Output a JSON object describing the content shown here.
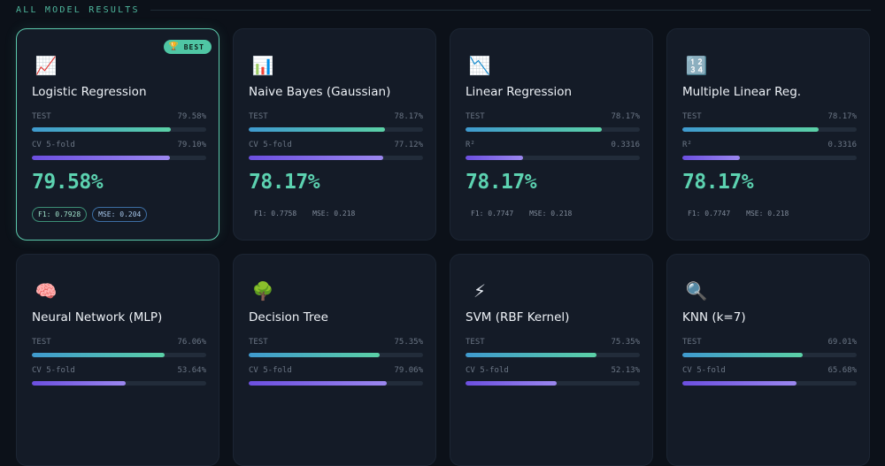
{
  "section": {
    "title": "ALL MODEL RESULTS"
  },
  "best_badge": {
    "icon": "🏆",
    "label": "BEST"
  },
  "models": [
    {
      "icon": "📈",
      "icon_name": "chart-increasing-icon",
      "name": "Logistic Regression",
      "m1_label": "TEST",
      "m1_value": "79.58%",
      "m1_fill": 0.7958,
      "m2_label": "CV 5-fold",
      "m2_value": "79.10%",
      "m2_fill": 0.791,
      "score": "79.58%",
      "f1": "F1: 0.7928",
      "mse": "MSE: 0.204"
    },
    {
      "icon": "📊",
      "icon_name": "bar-chart-icon",
      "name": "Naive Bayes (Gaussian)",
      "m1_label": "TEST",
      "m1_value": "78.17%",
      "m1_fill": 0.7817,
      "m2_label": "CV 5-fold",
      "m2_value": "77.12%",
      "m2_fill": 0.7712,
      "score": "78.17%",
      "f1": "F1: 0.7758",
      "mse": "MSE: 0.218"
    },
    {
      "icon": "📉",
      "icon_name": "chart-decreasing-icon",
      "name": "Linear Regression",
      "m1_label": "TEST",
      "m1_value": "78.17%",
      "m1_fill": 0.7817,
      "m2_label": "R²",
      "m2_value": "0.3316",
      "m2_fill": 0.3316,
      "score": "78.17%",
      "f1": "F1: 0.7747",
      "mse": "MSE: 0.218"
    },
    {
      "icon": "🔢",
      "icon_name": "numbers-icon",
      "name": "Multiple Linear Reg.",
      "m1_label": "TEST",
      "m1_value": "78.17%",
      "m1_fill": 0.7817,
      "m2_label": "R²",
      "m2_value": "0.3316",
      "m2_fill": 0.3316,
      "score": "78.17%",
      "f1": "F1: 0.7747",
      "mse": "MSE: 0.218"
    },
    {
      "icon": "🧠",
      "icon_name": "brain-icon",
      "name": "Neural Network (MLP)",
      "m1_label": "TEST",
      "m1_value": "76.06%",
      "m1_fill": 0.7606,
      "m2_label": "CV 5-fold",
      "m2_value": "53.64%",
      "m2_fill": 0.5364,
      "score": "",
      "f1": "",
      "mse": ""
    },
    {
      "icon": "🌳",
      "icon_name": "tree-icon",
      "name": "Decision Tree",
      "m1_label": "TEST",
      "m1_value": "75.35%",
      "m1_fill": 0.7535,
      "m2_label": "CV 5-fold",
      "m2_value": "79.06%",
      "m2_fill": 0.7906,
      "score": "",
      "f1": "",
      "mse": ""
    },
    {
      "icon": "⚡",
      "icon_name": "lightning-icon",
      "name": "SVM (RBF Kernel)",
      "m1_label": "TEST",
      "m1_value": "75.35%",
      "m1_fill": 0.7535,
      "m2_label": "CV 5-fold",
      "m2_value": "52.13%",
      "m2_fill": 0.5213,
      "score": "",
      "f1": "",
      "mse": ""
    },
    {
      "icon": "🔍",
      "icon_name": "magnifier-icon",
      "name": "KNN (k=7)",
      "m1_label": "TEST",
      "m1_value": "69.01%",
      "m1_fill": 0.6901,
      "m2_label": "CV 5-fold",
      "m2_value": "65.68%",
      "m2_fill": 0.6568,
      "score": "",
      "f1": "",
      "mse": ""
    }
  ],
  "colors": {
    "accent": "#5cd2b0",
    "cv_bar": "#8b72ec",
    "background": "#0c1119",
    "card": "#141b27"
  }
}
